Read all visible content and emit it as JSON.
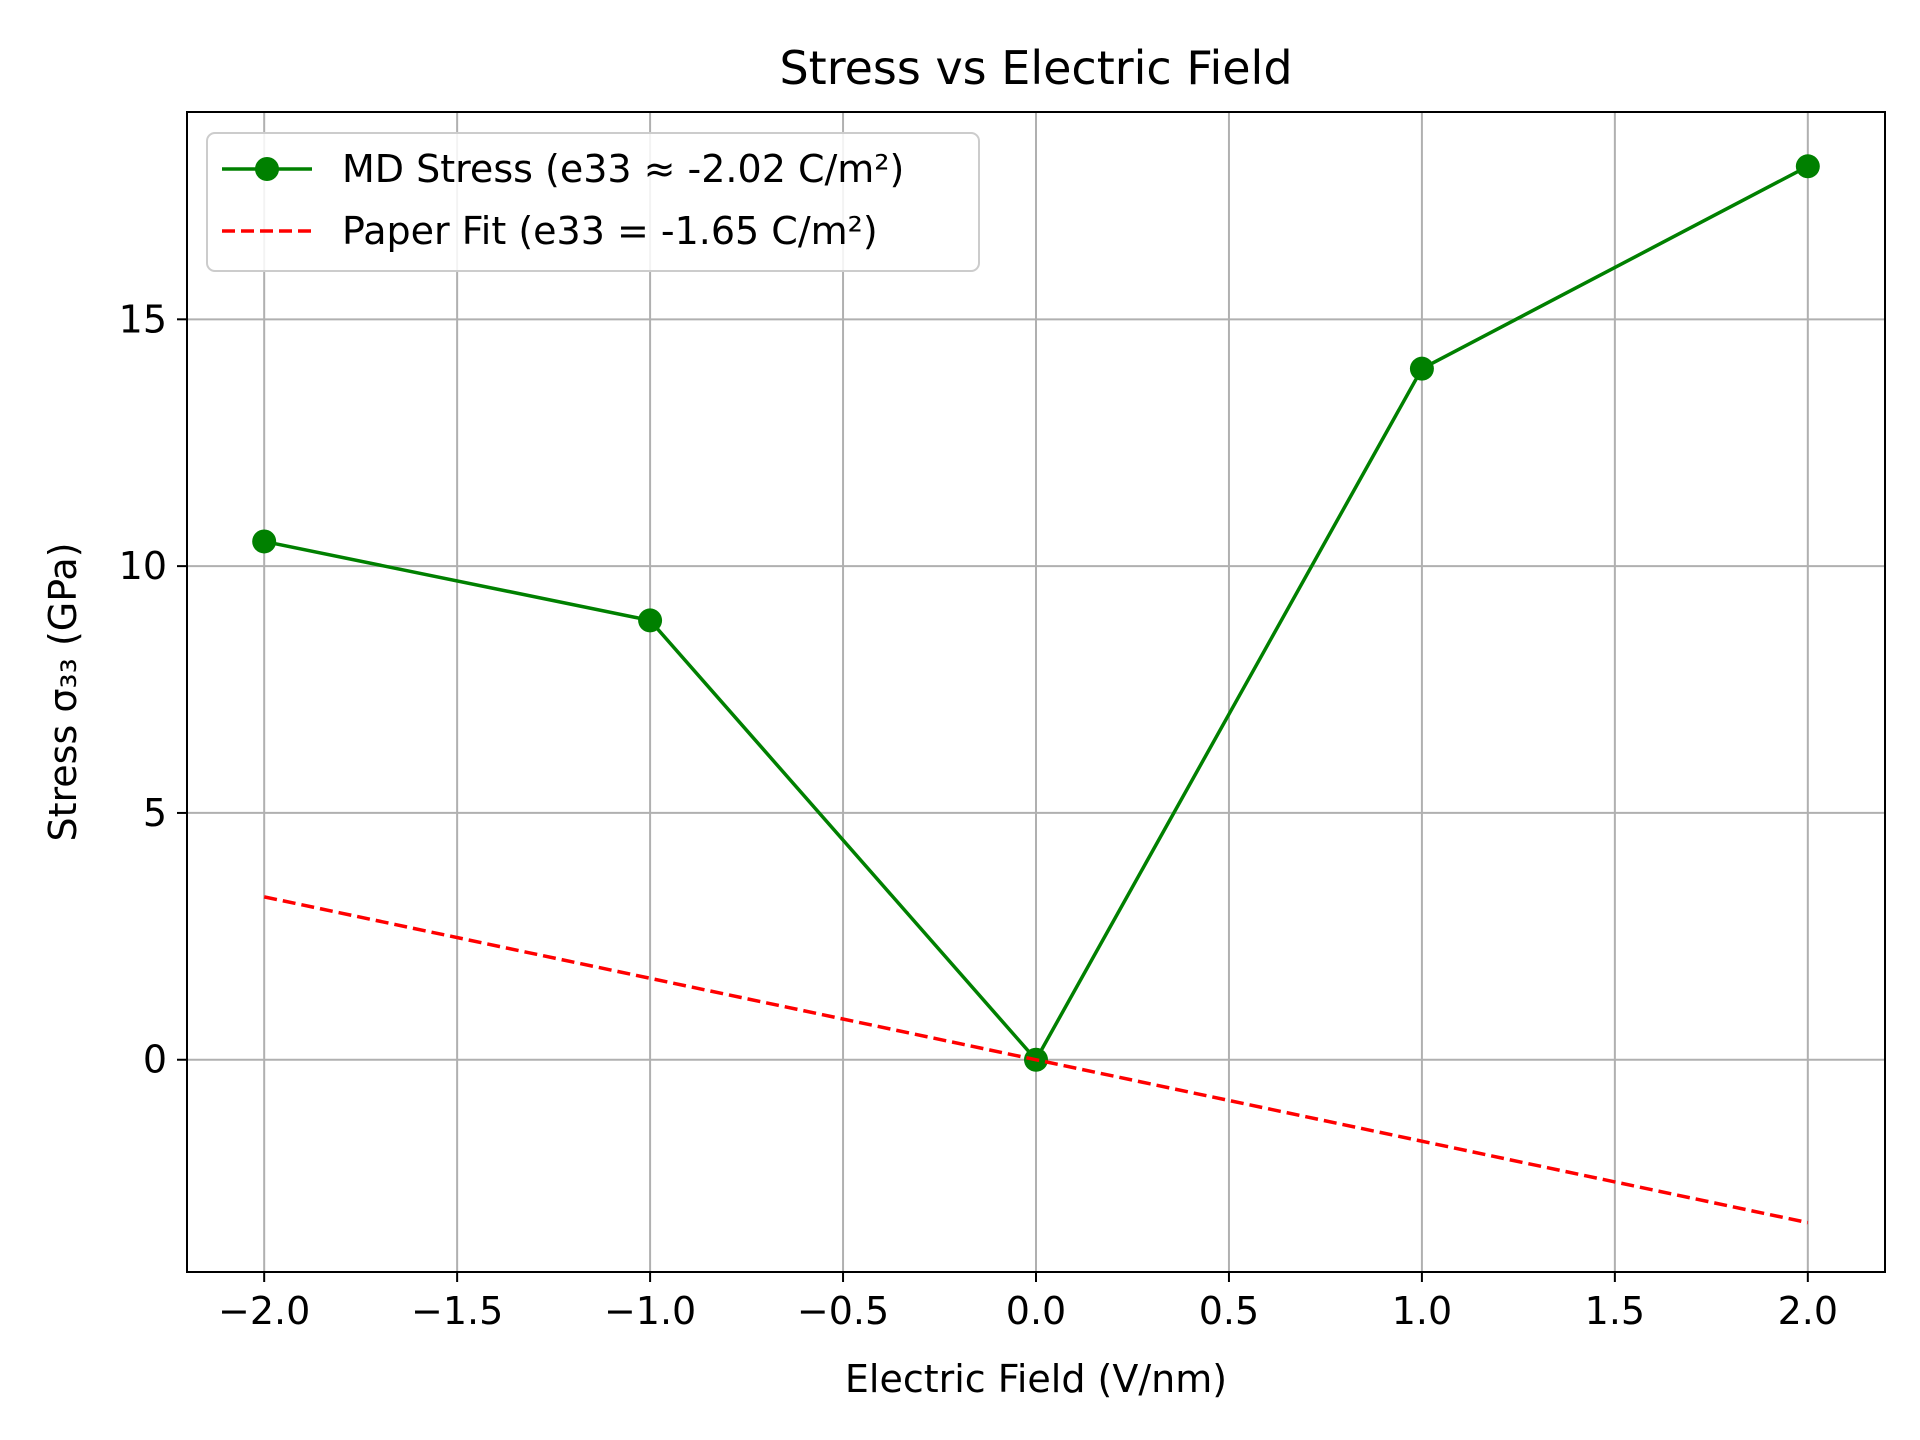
{
  "chart_data": {
    "type": "line",
    "title": "Stress vs Electric Field",
    "xlabel": "Electric Field (V/nm)",
    "ylabel": "Stress σ₃₃ (GPa)",
    "xlim": [
      -2.2,
      2.2
    ],
    "ylim": [
      -4.3,
      19.2
    ],
    "xticks": [
      -2.0,
      -1.5,
      -1.0,
      -0.5,
      0.0,
      0.5,
      1.0,
      1.5,
      2.0
    ],
    "xtick_labels": [
      "−2.0",
      "−1.5",
      "−1.0",
      "−0.5",
      "0.0",
      "0.5",
      "1.0",
      "1.5",
      "2.0"
    ],
    "yticks": [
      0,
      5,
      10,
      15
    ],
    "ytick_labels": [
      "0",
      "5",
      "10",
      "15"
    ],
    "grid": true,
    "legend_position": "top-left",
    "series": [
      {
        "name": "MD Stress (e33 ≈ -2.02 C/m²)",
        "color": "#008000",
        "style": "solid",
        "marker": "circle",
        "x": [
          -2.0,
          -1.0,
          0.0,
          1.0,
          2.0
        ],
        "y": [
          10.5,
          8.9,
          0.0,
          14.0,
          18.1
        ]
      },
      {
        "name": "Paper Fit (e33 = -1.65 C/m²)",
        "color": "#ff0000",
        "style": "dashed",
        "marker": "none",
        "x": [
          -2.0,
          2.0
        ],
        "y": [
          3.3,
          -3.3
        ]
      }
    ]
  }
}
